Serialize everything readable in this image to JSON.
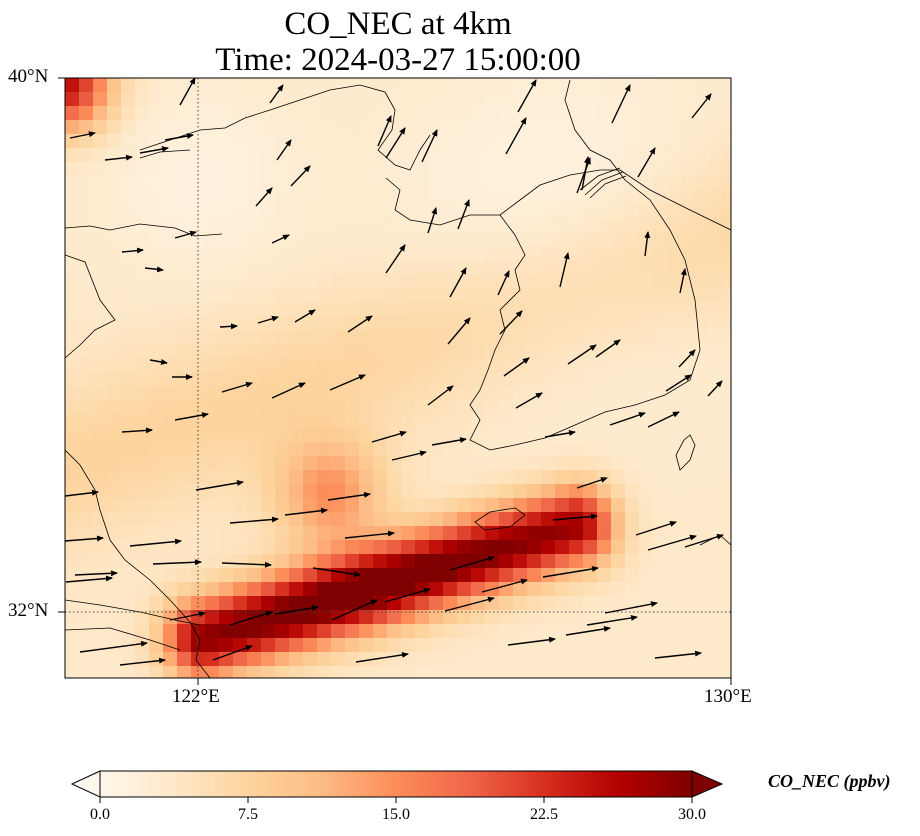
{
  "title": {
    "line1": "CO_NEC at 4km",
    "line2": "Time: 2024-03-27 15:00:00"
  },
  "axes": {
    "lat_labels": [
      "40°N",
      "32°N"
    ],
    "lon_labels": [
      "122°E",
      "130°E"
    ],
    "extent": {
      "lon_min": 120,
      "lon_max": 130,
      "lat_min": 31,
      "lat_max": 40
    },
    "gridlines": {
      "lons": [
        122
      ],
      "lats": [
        32
      ],
      "style": "dotted"
    }
  },
  "colorbar": {
    "title": "CO_NEC (ppbv)",
    "tick_labels": [
      "0.0",
      "7.5",
      "15.0",
      "22.5",
      "30.0"
    ],
    "range": [
      0,
      30
    ],
    "extend": "both",
    "colormap": "OrRd",
    "colors": [
      "#fff7ec",
      "#fee8c8",
      "#fdd49e",
      "#fdbb84",
      "#fc8d59",
      "#ef6548",
      "#d7301f",
      "#b30000",
      "#7f0000"
    ]
  },
  "legend_placement": "bottom"
}
